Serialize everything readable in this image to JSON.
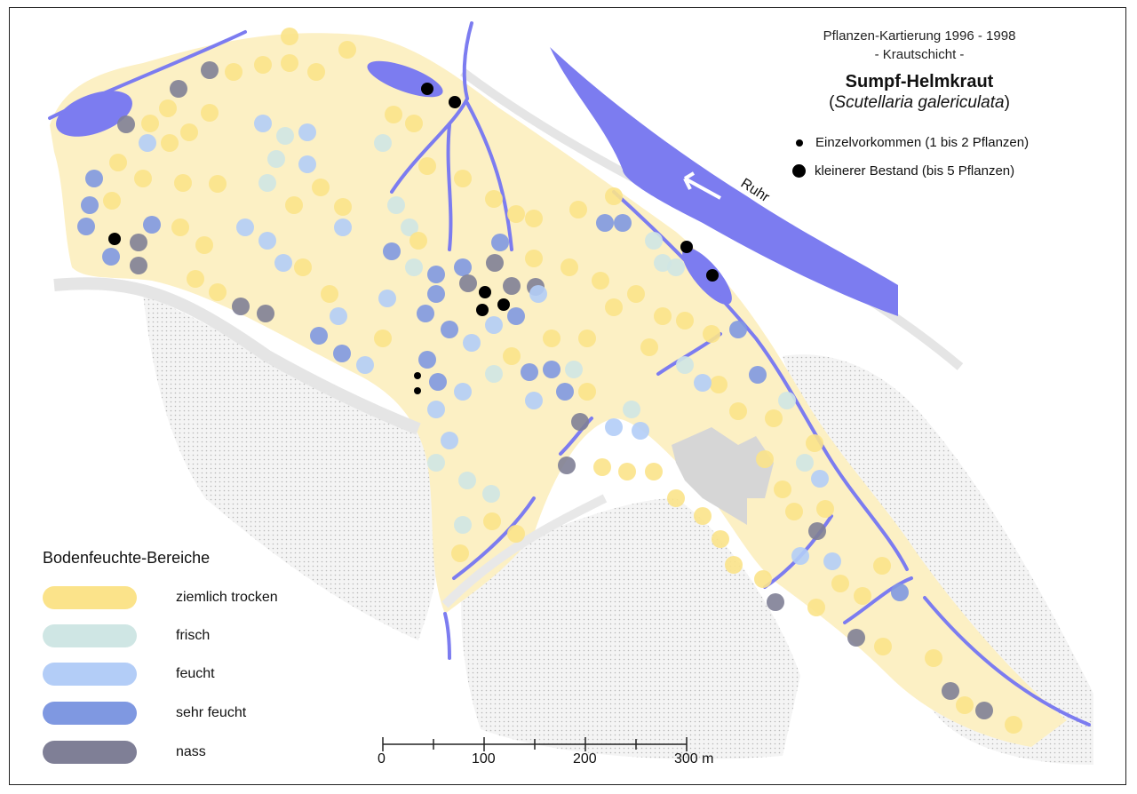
{
  "title": {
    "line1": "Pflanzen-Kartierung 1996 - 1998",
    "line2": "- Krautschicht -",
    "species": "Sumpf-Helmkraut",
    "latin_open": "(",
    "latin_name": "Scutellaria galericulata",
    "latin_close": ")"
  },
  "occurrence_legend": {
    "single": "Einzelvorkommen (1 bis 2 Pflanzen)",
    "small_stand": "kleinerer Bestand (bis 5 Pflanzen)"
  },
  "river_label": "Ruhr",
  "legend": {
    "title": "Bodenfeuchte-Bereiche",
    "items": [
      {
        "label": "ziemlich trocken",
        "color": "#fbe38a"
      },
      {
        "label": "frisch",
        "color": "#cfe6e4"
      },
      {
        "label": "feucht",
        "color": "#b3cdf7"
      },
      {
        "label": "sehr feucht",
        "color": "#7f98e1"
      },
      {
        "label": "nass",
        "color": "#7f7f96"
      }
    ]
  },
  "scale_bar": {
    "labels": [
      "0",
      "100",
      "200",
      "300 m"
    ]
  },
  "colors": {
    "water": "#7c7cf0",
    "area_base": "#fcf0c4",
    "built": "#d6d6d6",
    "hatched": "#ececec"
  }
}
